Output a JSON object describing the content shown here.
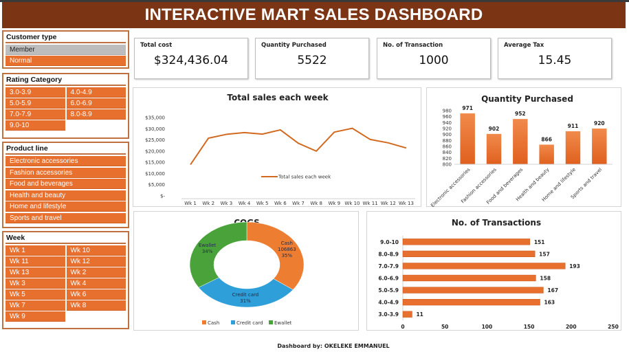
{
  "header": {
    "title": "INTERACTIVE MART SALES DASHBOARD",
    "banner_color": "#7b3414"
  },
  "colors": {
    "accent": "#e8702f",
    "slicer_border": "#c0703e",
    "unselected": "#bdbdbd",
    "cash": "#ed7d31",
    "credit_card": "#2e9fd8",
    "ewallet": "#4aa33a"
  },
  "slicers": {
    "customer_type": {
      "title": "Customer type",
      "items": [
        {
          "label": "Member",
          "selected": false
        },
        {
          "label": "Normal",
          "selected": true
        }
      ]
    },
    "rating_category": {
      "title": "Rating Category",
      "items": [
        {
          "label": "3.0-3.9"
        },
        {
          "label": "4.0-4.9"
        },
        {
          "label": "5.0-5.9"
        },
        {
          "label": "6.0-6.9"
        },
        {
          "label": "7.0-7.9"
        },
        {
          "label": "8.0-8.9"
        },
        {
          "label": "9.0-10"
        }
      ]
    },
    "product_line": {
      "title": "Product line",
      "items": [
        {
          "label": "Electronic accessories"
        },
        {
          "label": "Fashion accessories"
        },
        {
          "label": "Food and beverages"
        },
        {
          "label": "Health and beauty"
        },
        {
          "label": "Home and lifestyle"
        },
        {
          "label": "Sports and travel"
        }
      ]
    },
    "week": {
      "title": "Week",
      "items": [
        {
          "label": "Wk  1"
        },
        {
          "label": "Wk  10"
        },
        {
          "label": "Wk  11"
        },
        {
          "label": "Wk  12"
        },
        {
          "label": "Wk  13"
        },
        {
          "label": "Wk  2"
        },
        {
          "label": "Wk  3"
        },
        {
          "label": "Wk  4"
        },
        {
          "label": "Wk  5"
        },
        {
          "label": "Wk  6"
        },
        {
          "label": "Wk  7"
        },
        {
          "label": "Wk  8"
        },
        {
          "label": "Wk  9"
        }
      ]
    }
  },
  "kpis": [
    {
      "label": "Total cost",
      "value": "$324,436.04"
    },
    {
      "label": "Quantity Purchased",
      "value": "5522"
    },
    {
      "label": "No. of Transaction",
      "value": "1000"
    },
    {
      "label": "Average Tax",
      "value": "15.45"
    }
  ],
  "chart_data": [
    {
      "type": "line",
      "title": "Total sales each week",
      "categories": [
        "Wk  1",
        "Wk  2",
        "Wk  3",
        "Wk  4",
        "Wk  5",
        "Wk  6",
        "Wk  7",
        "Wk  8",
        "Wk  9",
        "Wk  10",
        "Wk  11",
        "Wk  12",
        "Wk  13"
      ],
      "series": [
        {
          "name": "Total sales each week",
          "values": [
            14000,
            25800,
            27500,
            28300,
            27600,
            29500,
            23500,
            20000,
            28500,
            30200,
            25200,
            23700,
            21400
          ]
        }
      ],
      "yticks": [
        "$-",
        "$5,000",
        "$10,000",
        "$15,000",
        "$20,000",
        "$25,000",
        "$30,000",
        "$35,000"
      ],
      "ylim": [
        0,
        35000
      ],
      "legend": "center",
      "grid": false
    },
    {
      "type": "bar",
      "title": "Quantity Purchased",
      "categories": [
        "Electronic accessories",
        "Fashion accessories",
        "Food and beverages",
        "Health and beauty",
        "Home and lifestyle",
        "Sports and travel"
      ],
      "values": [
        971,
        902,
        952,
        866,
        911,
        920
      ],
      "yticks": [
        "800",
        "820",
        "840",
        "860",
        "880",
        "900",
        "920",
        "940",
        "960",
        "980"
      ],
      "ylim": [
        800,
        980
      ],
      "grid": false
    },
    {
      "type": "pie",
      "title": "COGS",
      "donut": true,
      "slices": [
        {
          "name": "Cash",
          "percent": 35,
          "value": 106863,
          "label_lines": [
            "Cash",
            "106863",
            "35%"
          ]
        },
        {
          "name": "Credit card",
          "percent": 31,
          "label_lines": [
            "Credit card",
            "31%"
          ]
        },
        {
          "name": "Ewallet",
          "percent": 34,
          "label_lines": [
            "Ewallet",
            "34%"
          ]
        }
      ],
      "legend": "bottom",
      "legend_items": [
        "Cash",
        "Credit card",
        "Ewallet"
      ]
    },
    {
      "type": "bar",
      "orientation": "horizontal",
      "title": "No. of Transactions",
      "categories": [
        "9.0-10",
        "8.0-8.9",
        "7.0-7.9",
        "6.0-6.9",
        "5.0-5.9",
        "4.0-4.9",
        "3.0-3.9"
      ],
      "values": [
        151,
        157,
        193,
        158,
        167,
        163,
        11
      ],
      "xticks": [
        "0",
        "50",
        "100",
        "150",
        "200",
        "250"
      ],
      "xlim": [
        0,
        250
      ],
      "grid": false
    }
  ],
  "footer": {
    "credit": "Dashboard by: OKELEKE EMMANUEL"
  }
}
